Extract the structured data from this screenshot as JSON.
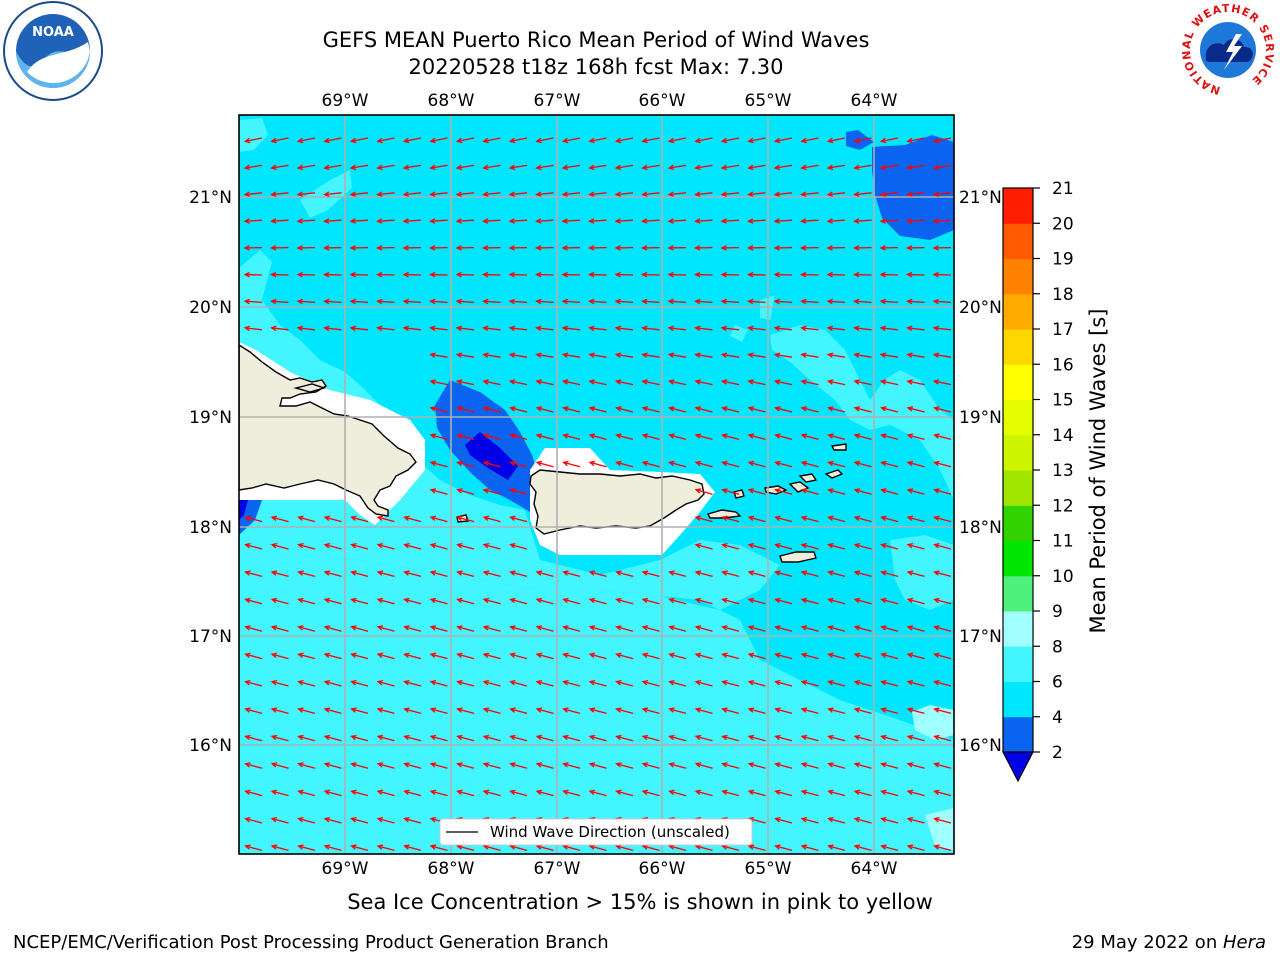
{
  "title": {
    "line1": "GEFS MEAN Puerto Rico Mean Period of Wind Waves",
    "line2": "20220528 t18z 168h fcst   Max: 7.30"
  },
  "logos": {
    "left": {
      "icon": "noaa-logo",
      "text": "NOAA"
    },
    "right": {
      "icon": "national-weather-service-logo",
      "ring_text": "NATIONAL WEATHER SERVICE"
    }
  },
  "map": {
    "lon_labels": [
      "69°W",
      "68°W",
      "67°W",
      "66°W",
      "65°W",
      "64°W"
    ],
    "lat_labels": [
      "21°N",
      "20°N",
      "19°N",
      "18°N",
      "17°N",
      "16°N"
    ],
    "legend": "Wind Wave Direction (unscaled)",
    "arrow_color": "#ff0000",
    "arrow_direction": "toward west-northwest"
  },
  "colorbar": {
    "title": "Mean Period of Wind Waves [s]",
    "ticks": [
      "2",
      "4",
      "6",
      "8",
      "9",
      "10",
      "11",
      "12",
      "13",
      "14",
      "15",
      "16",
      "17",
      "18",
      "19",
      "20",
      "21"
    ],
    "colors": [
      "#0a64f0",
      "#00e6ff",
      "#42f5ff",
      "#a0ffff",
      "#50f07d",
      "#00e600",
      "#32d200",
      "#a0e600",
      "#cdf500",
      "#e6ff00",
      "#ffff00",
      "#ffd700",
      "#ffaa00",
      "#ff8200",
      "#ff5a00",
      "#ff1e00"
    ],
    "under_color": "#0000e6"
  },
  "note": "Sea Ice Concentration > 15% is shown in pink to yellow",
  "footer": {
    "left": "NCEP/EMC/Verification Post Processing Product Generation Branch",
    "right_prefix": "29 May 2022 on ",
    "right_host": "Hera"
  }
}
